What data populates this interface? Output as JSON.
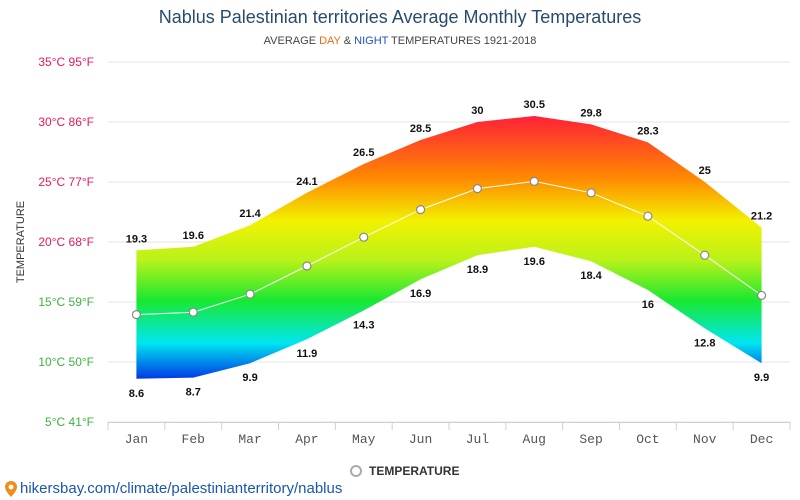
{
  "title": "Nablus Palestinian territories Average Monthly Temperatures",
  "subtitle": {
    "prefix": "AVERAGE ",
    "day": "DAY",
    "middle": " & ",
    "night": "NIGHT",
    "suffix": " TEMPERATURES 1921-2018"
  },
  "legend": {
    "label": "TEMPERATURE"
  },
  "source": {
    "text": "hikersbay.com/climate/palestinianterritory/nablus"
  },
  "colors": {
    "title": "#274b6d",
    "day_accent": "#e86e0b",
    "night_accent": "#1f4fc9",
    "link": "#1a57b0"
  },
  "chart_data": {
    "type": "area",
    "ylabel": "TEMPERATURE",
    "ylim": [
      5,
      35
    ],
    "y_ticks": [
      {
        "value": 35,
        "label": "35°C 95°F",
        "color": "#e8175d"
      },
      {
        "value": 30,
        "label": "30°C 86°F",
        "color": "#e8175d"
      },
      {
        "value": 25,
        "label": "25°C 77°F",
        "color": "#e8175d"
      },
      {
        "value": 20,
        "label": "20°C 68°F",
        "color": "#e8175d"
      },
      {
        "value": 15,
        "label": "15°C 59°F",
        "color": "#3cb43c"
      },
      {
        "value": 10,
        "label": "10°C 50°F",
        "color": "#3cb43c"
      },
      {
        "value": 5,
        "label": "5°C 41°F",
        "color": "#3cb43c"
      }
    ],
    "grid": true,
    "legend_position": "bottom",
    "categories": [
      "Jan",
      "Feb",
      "Mar",
      "Apr",
      "May",
      "Jun",
      "Jul",
      "Aug",
      "Sep",
      "Oct",
      "Nov",
      "Dec"
    ],
    "day": [
      19.3,
      19.6,
      21.4,
      24.1,
      26.5,
      28.5,
      30,
      30.5,
      29.8,
      28.3,
      25,
      21.2
    ],
    "night": [
      8.6,
      8.7,
      9.9,
      11.9,
      14.3,
      16.9,
      18.9,
      19.6,
      18.4,
      16,
      12.8,
      9.9
    ],
    "series": [
      {
        "name": "TEMPERATURE",
        "values": [
          13.95,
          14.15,
          15.65,
          18,
          20.4,
          22.7,
          24.45,
          25.05,
          24.1,
          22.15,
          18.9,
          15.55
        ]
      }
    ]
  }
}
